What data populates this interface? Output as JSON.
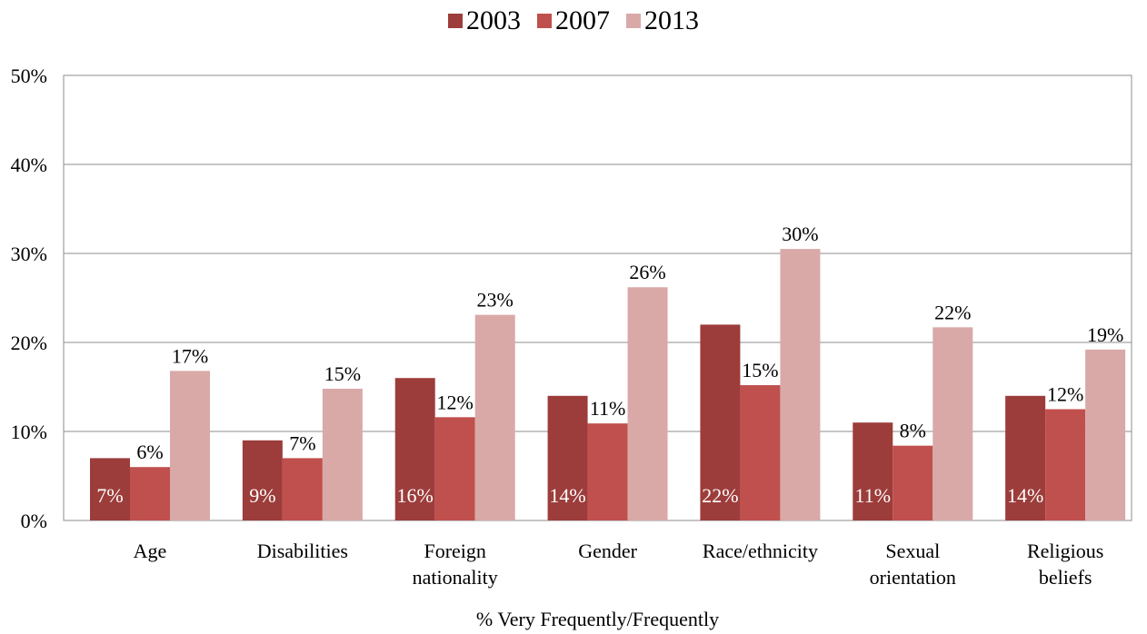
{
  "chart_data": {
    "type": "bar",
    "title": "",
    "xlabel": "% Very Frequently/Frequently",
    "ylabel": "",
    "ylim": [
      0,
      50
    ],
    "yticks": [
      "0%",
      "10%",
      "20%",
      "30%",
      "40%",
      "50%"
    ],
    "ytick_values": [
      0,
      10,
      20,
      30,
      40,
      50
    ],
    "grid": true,
    "legend_position": "top",
    "categories": [
      [
        "Age"
      ],
      [
        "Disabilities"
      ],
      [
        "Foreign",
        "nationality"
      ],
      [
        "Gender"
      ],
      [
        "Race/ethnicity"
      ],
      [
        "Sexual",
        "orientation"
      ],
      [
        "Religious",
        "beliefs"
      ]
    ],
    "series": [
      {
        "name": "2003",
        "color": "#9c3d3b",
        "values": [
          7,
          9,
          16,
          14,
          22,
          11,
          14
        ],
        "labels": [
          "7%",
          "9%",
          "16%",
          "14%",
          "22%",
          "11%",
          "14%"
        ]
      },
      {
        "name": "2007",
        "color": "#c0504d",
        "values": [
          6,
          7,
          11.6,
          10.9,
          15.2,
          8.4,
          12.5
        ],
        "labels": [
          "6%",
          "7%",
          "12%",
          "11%",
          "15%",
          "8%",
          "12%"
        ]
      },
      {
        "name": "2013",
        "color": "#d9a9a8",
        "values": [
          16.8,
          14.8,
          23.1,
          26.2,
          30.5,
          21.7,
          19.2
        ],
        "labels": [
          "17%",
          "15%",
          "23%",
          "26%",
          "30%",
          "22%",
          "19%"
        ]
      }
    ]
  }
}
